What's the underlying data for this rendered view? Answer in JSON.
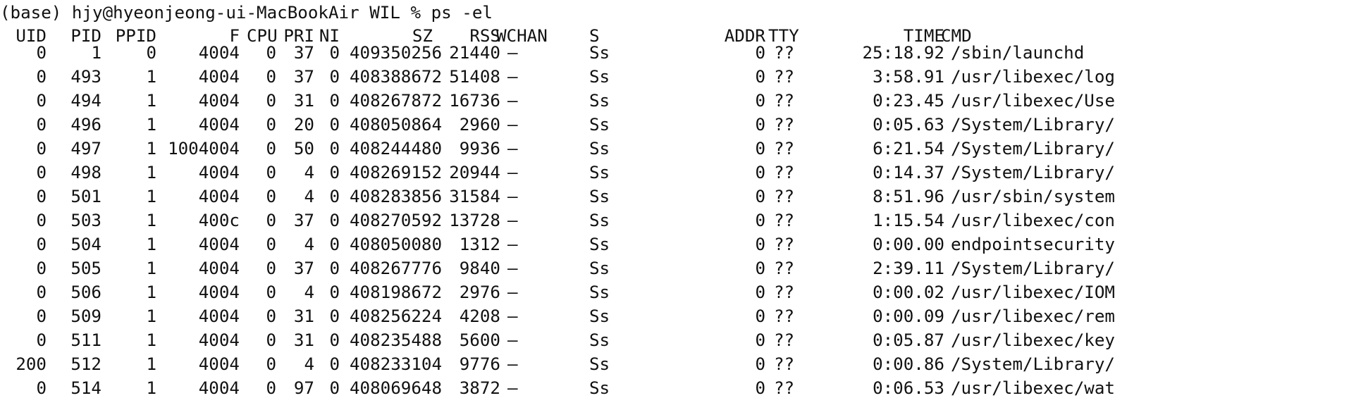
{
  "terminal": {
    "prompt": "(base) hjy@hyeonjeong-ui-MacBookAir WIL % ps -el",
    "columns": [
      "UID",
      "PID",
      "PPID",
      "F",
      "CPU",
      "PRI",
      "NI",
      "SZ",
      "RSS",
      "WCHAN",
      "S",
      "ADDR",
      "TTY",
      "TIME",
      "CMD"
    ],
    "rows": [
      {
        "uid": "0",
        "pid": "1",
        "ppid": "0",
        "f": "4004",
        "cpu": "0",
        "pri": "37",
        "ni": "0",
        "sz": "409350256",
        "rss": "21440",
        "wchan": "–",
        "s": "Ss",
        "addr": "0",
        "tty": "??",
        "time": "25:18.92",
        "cmd": "/sbin/launchd"
      },
      {
        "uid": "0",
        "pid": "493",
        "ppid": "1",
        "f": "4004",
        "cpu": "0",
        "pri": "37",
        "ni": "0",
        "sz": "408388672",
        "rss": "51408",
        "wchan": "–",
        "s": "Ss",
        "addr": "0",
        "tty": "??",
        "time": "3:58.91",
        "cmd": "/usr/libexec/log"
      },
      {
        "uid": "0",
        "pid": "494",
        "ppid": "1",
        "f": "4004",
        "cpu": "0",
        "pri": "31",
        "ni": "0",
        "sz": "408267872",
        "rss": "16736",
        "wchan": "–",
        "s": "Ss",
        "addr": "0",
        "tty": "??",
        "time": "0:23.45",
        "cmd": "/usr/libexec/Use"
      },
      {
        "uid": "0",
        "pid": "496",
        "ppid": "1",
        "f": "4004",
        "cpu": "0",
        "pri": "20",
        "ni": "0",
        "sz": "408050864",
        "rss": "2960",
        "wchan": "–",
        "s": "Ss",
        "addr": "0",
        "tty": "??",
        "time": "0:05.63",
        "cmd": "/System/Library/"
      },
      {
        "uid": "0",
        "pid": "497",
        "ppid": "1",
        "f": "1004004",
        "cpu": "0",
        "pri": "50",
        "ni": "0",
        "sz": "408244480",
        "rss": "9936",
        "wchan": "–",
        "s": "Ss",
        "addr": "0",
        "tty": "??",
        "time": "6:21.54",
        "cmd": "/System/Library/"
      },
      {
        "uid": "0",
        "pid": "498",
        "ppid": "1",
        "f": "4004",
        "cpu": "0",
        "pri": "4",
        "ni": "0",
        "sz": "408269152",
        "rss": "20944",
        "wchan": "–",
        "s": "Ss",
        "addr": "0",
        "tty": "??",
        "time": "0:14.37",
        "cmd": "/System/Library/"
      },
      {
        "uid": "0",
        "pid": "501",
        "ppid": "1",
        "f": "4004",
        "cpu": "0",
        "pri": "4",
        "ni": "0",
        "sz": "408283856",
        "rss": "31584",
        "wchan": "–",
        "s": "Ss",
        "addr": "0",
        "tty": "??",
        "time": "8:51.96",
        "cmd": "/usr/sbin/system"
      },
      {
        "uid": "0",
        "pid": "503",
        "ppid": "1",
        "f": "400c",
        "cpu": "0",
        "pri": "37",
        "ni": "0",
        "sz": "408270592",
        "rss": "13728",
        "wchan": "–",
        "s": "Ss",
        "addr": "0",
        "tty": "??",
        "time": "1:15.54",
        "cmd": "/usr/libexec/con"
      },
      {
        "uid": "0",
        "pid": "504",
        "ppid": "1",
        "f": "4004",
        "cpu": "0",
        "pri": "4",
        "ni": "0",
        "sz": "408050080",
        "rss": "1312",
        "wchan": "–",
        "s": "Ss",
        "addr": "0",
        "tty": "??",
        "time": "0:00.00",
        "cmd": "endpointsecurity"
      },
      {
        "uid": "0",
        "pid": "505",
        "ppid": "1",
        "f": "4004",
        "cpu": "0",
        "pri": "37",
        "ni": "0",
        "sz": "408267776",
        "rss": "9840",
        "wchan": "–",
        "s": "Ss",
        "addr": "0",
        "tty": "??",
        "time": "2:39.11",
        "cmd": "/System/Library/"
      },
      {
        "uid": "0",
        "pid": "506",
        "ppid": "1",
        "f": "4004",
        "cpu": "0",
        "pri": "4",
        "ni": "0",
        "sz": "408198672",
        "rss": "2976",
        "wchan": "–",
        "s": "Ss",
        "addr": "0",
        "tty": "??",
        "time": "0:00.02",
        "cmd": "/usr/libexec/IOM"
      },
      {
        "uid": "0",
        "pid": "509",
        "ppid": "1",
        "f": "4004",
        "cpu": "0",
        "pri": "31",
        "ni": "0",
        "sz": "408256224",
        "rss": "4208",
        "wchan": "–",
        "s": "Ss",
        "addr": "0",
        "tty": "??",
        "time": "0:00.09",
        "cmd": "/usr/libexec/rem"
      },
      {
        "uid": "0",
        "pid": "511",
        "ppid": "1",
        "f": "4004",
        "cpu": "0",
        "pri": "31",
        "ni": "0",
        "sz": "408235488",
        "rss": "5600",
        "wchan": "–",
        "s": "Ss",
        "addr": "0",
        "tty": "??",
        "time": "0:05.87",
        "cmd": "/usr/libexec/key"
      },
      {
        "uid": "200",
        "pid": "512",
        "ppid": "1",
        "f": "4004",
        "cpu": "0",
        "pri": "4",
        "ni": "0",
        "sz": "408233104",
        "rss": "9776",
        "wchan": "–",
        "s": "Ss",
        "addr": "0",
        "tty": "??",
        "time": "0:00.86",
        "cmd": "/System/Library/"
      },
      {
        "uid": "0",
        "pid": "514",
        "ppid": "1",
        "f": "4004",
        "cpu": "0",
        "pri": "97",
        "ni": "0",
        "sz": "408069648",
        "rss": "3872",
        "wchan": "–",
        "s": "Ss",
        "addr": "0",
        "tty": "??",
        "time": "0:06.53",
        "cmd": "/usr/libexec/wat"
      }
    ]
  }
}
